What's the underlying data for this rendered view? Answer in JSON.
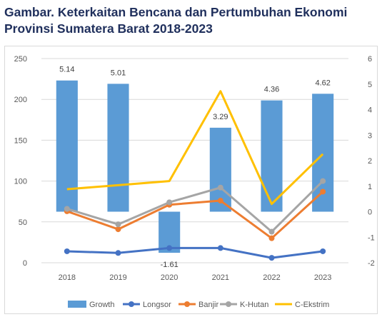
{
  "title": "Gambar. Keterkaitan Bencana dan Pertumbuhan Ekonomi Provinsi Sumatera Barat 2018-2023",
  "chart_data": {
    "type": "bar",
    "categories": [
      "2018",
      "2019",
      "2020",
      "2021",
      "2022",
      "2023"
    ],
    "title": "",
    "xlabel": "",
    "ylabel": "",
    "ylim_left": [
      0,
      250
    ],
    "ylim_right": [
      -2,
      6
    ],
    "left_ticks": [
      "0",
      "50",
      "100",
      "150",
      "200",
      "250"
    ],
    "right_ticks": [
      "-2",
      "-1",
      "0",
      "1",
      "2",
      "3",
      "4",
      "5",
      "6"
    ],
    "grid": true,
    "legend_position": "bottom",
    "growth": {
      "name": "Growth",
      "axis": "right",
      "color": "#5b9bd5",
      "values": [
        5.14,
        5.01,
        -1.61,
        3.29,
        4.36,
        4.62
      ],
      "labels": [
        "5.14",
        "5.01",
        "-1.61",
        "3.29",
        "4.36",
        "4.62"
      ]
    },
    "series": [
      {
        "name": "Longsor",
        "axis": "left",
        "color": "#4472c4",
        "values": [
          14,
          12,
          18,
          18,
          6,
          14
        ]
      },
      {
        "name": "Banjir",
        "axis": "left",
        "color": "#ed7d31",
        "values": [
          63,
          41,
          71,
          76,
          30,
          87
        ]
      },
      {
        "name": "K-Hutan",
        "axis": "left",
        "color": "#a5a5a5",
        "values": [
          66,
          47,
          74,
          92,
          38,
          100
        ]
      },
      {
        "name": "C-Ekstrim",
        "axis": "left",
        "color": "#ffc000",
        "values": [
          90,
          95,
          100,
          210,
          72,
          133
        ]
      }
    ]
  }
}
